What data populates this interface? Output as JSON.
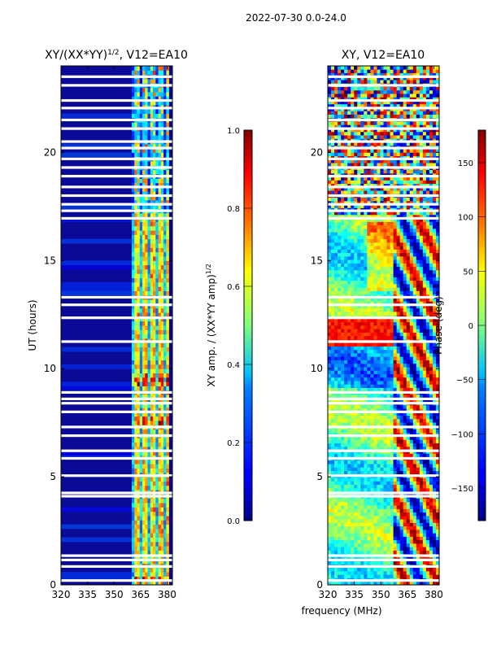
{
  "suptitle": "2022-07-30 0.0-24.0",
  "xlabel": "frequency (MHz)",
  "colors": {
    "white_gap": "#ffffff",
    "frame": "#000000",
    "jet_low": "#00007f",
    "jet_high": "#7f0000"
  },
  "chart_data": [
    {
      "type": "heatmap",
      "title_main": "XY/(XX*YY)",
      "title_sup": "1/2",
      "title_tail": ", V12=EA10",
      "ylabel": "UT (hours)",
      "x": {
        "ticks": [
          320,
          335,
          350,
          365,
          380
        ],
        "lim": [
          320,
          383
        ]
      },
      "y": {
        "ticks": [
          0,
          5,
          10,
          15,
          20
        ],
        "lim": [
          0,
          24
        ]
      },
      "colorbar": {
        "label_main": "XY amp. / (XX*YY amp)",
        "label_sup": "1/2",
        "ticks": [
          "0.0",
          "0.2",
          "0.4",
          "0.6",
          "0.8",
          "1.0"
        ],
        "range": [
          0,
          1
        ],
        "colormap": "jet"
      },
      "bright_band_mhz": [
        360,
        381
      ],
      "bright_channels_mhz": [
        362,
        367,
        371,
        376,
        380
      ]
    },
    {
      "type": "heatmap",
      "title": "XY, V12=EA10",
      "x": {
        "ticks": [
          320,
          335,
          350,
          365,
          380
        ],
        "lim": [
          320,
          383
        ]
      },
      "y": {
        "ticks": [
          0,
          5,
          10,
          15,
          20
        ],
        "lim": [
          0,
          24
        ]
      },
      "colorbar": {
        "label": "Phase (deg)",
        "ticks": [
          "150",
          "100",
          "50",
          "0",
          "−50",
          "−100",
          "−150"
        ],
        "range": [
          -180,
          180
        ],
        "colormap": "jet"
      }
    }
  ],
  "gap_hours_common": [
    0.2,
    0.85,
    1.15,
    1.35,
    4.1,
    4.25,
    5.05,
    5.85,
    6.2,
    6.9,
    7.3,
    8.0,
    8.4,
    8.6,
    8.9,
    11.25,
    12.35,
    12.95,
    13.3,
    16.95,
    17.3
  ],
  "gap_hours_upper": [
    17.6,
    18.0,
    18.4,
    18.9,
    19.3,
    19.7,
    20.2,
    20.5,
    21.1,
    21.5,
    22.05,
    22.4,
    23.1,
    23.5
  ]
}
